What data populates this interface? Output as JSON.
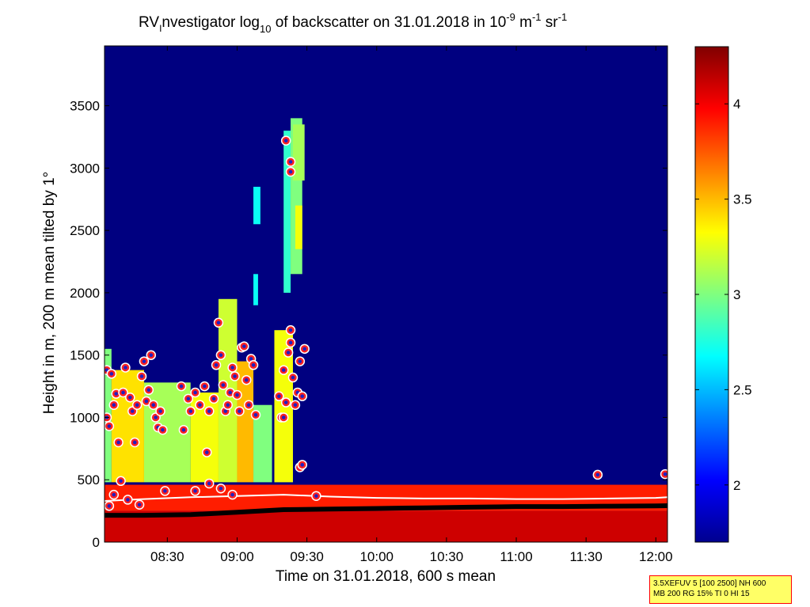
{
  "chart_data": {
    "type": "heatmap",
    "title": {
      "prefix": "RV",
      "sub_i": "I",
      "mid": "nvestigator log",
      "sub_10": "10",
      "mid2": " of backscatter on 31.01.2018 in 10",
      "sup_9": "-9",
      "unit_m": " m",
      "sup_1a": "-1",
      "unit_sr": " sr",
      "sup_1b": "-1"
    },
    "xlabel": "Time on 31.01.2018, 600 s mean",
    "ylabel": "Height in m, 200 m mean tilted by 1°",
    "x_ticks": [
      "08:30",
      "09:00",
      "09:30",
      "10:00",
      "10:30",
      "11:00",
      "11:30",
      "12:00"
    ],
    "x_tick_minutes": [
      510,
      540,
      570,
      600,
      630,
      660,
      690,
      720
    ],
    "xlim_minutes": [
      483,
      725
    ],
    "ylim": [
      0,
      3980
    ],
    "y_ticks": [
      0,
      500,
      1000,
      1500,
      2000,
      2500,
      3000,
      3500
    ],
    "colorbar": {
      "range": [
        1.7,
        4.3
      ],
      "ticks": [
        "2",
        "2.5",
        "3",
        "3.5",
        "4"
      ],
      "tick_values": [
        2,
        2.5,
        3,
        3.5,
        4
      ],
      "colormap": "jet"
    },
    "background_value": 1.7,
    "layers": [
      {
        "name": "surface layer",
        "from": 0,
        "to": 250,
        "value": 4.1
      },
      {
        "name": "boundary layer",
        "from": 250,
        "to": 460,
        "value": 3.9
      }
    ],
    "cloud_patches": [
      {
        "t0": 483,
        "t1": 486,
        "h0": 480,
        "h1": 1550,
        "value": 3.0
      },
      {
        "t0": 486,
        "t1": 500,
        "h0": 480,
        "h1": 1380,
        "value": 3.4
      },
      {
        "t0": 500,
        "t1": 520,
        "h0": 480,
        "h1": 1280,
        "value": 3.1
      },
      {
        "t0": 520,
        "t1": 532,
        "h0": 480,
        "h1": 1200,
        "value": 3.3
      },
      {
        "t0": 532,
        "t1": 540,
        "h0": 480,
        "h1": 1950,
        "value": 3.2
      },
      {
        "t0": 540,
        "t1": 547,
        "h0": 480,
        "h1": 1450,
        "value": 3.5
      },
      {
        "t0": 547,
        "t1": 555,
        "h0": 480,
        "h1": 1100,
        "value": 3.0
      },
      {
        "t0": 556,
        "t1": 564,
        "h0": 480,
        "h1": 1700,
        "value": 3.3
      },
      {
        "t0": 547,
        "t1": 549,
        "h0": 1900,
        "h1": 2150,
        "value": 2.7
      },
      {
        "t0": 547,
        "t1": 550,
        "h0": 2550,
        "h1": 2850,
        "value": 2.7
      },
      {
        "t0": 560,
        "t1": 563,
        "h0": 2000,
        "h1": 3300,
        "value": 2.8
      },
      {
        "t0": 563,
        "t1": 568,
        "h0": 2150,
        "h1": 3400,
        "value": 3.0
      },
      {
        "t0": 565,
        "t1": 568,
        "h0": 2350,
        "h1": 2700,
        "value": 3.3
      },
      {
        "t0": 564,
        "t1": 569,
        "h0": 2900,
        "h1": 3350,
        "value": 3.1
      }
    ],
    "markers_circles": [
      {
        "t": 484,
        "h": 1380
      },
      {
        "t": 486,
        "h": 1350
      },
      {
        "t": 484,
        "h": 1000
      },
      {
        "t": 485,
        "h": 930
      },
      {
        "t": 487,
        "h": 1100
      },
      {
        "t": 488,
        "h": 1190
      },
      {
        "t": 489,
        "h": 800
      },
      {
        "t": 491,
        "h": 1200
      },
      {
        "t": 492,
        "h": 1400
      },
      {
        "t": 494,
        "h": 1160
      },
      {
        "t": 495,
        "h": 1050
      },
      {
        "t": 496,
        "h": 800
      },
      {
        "t": 497,
        "h": 1100
      },
      {
        "t": 499,
        "h": 1330
      },
      {
        "t": 500,
        "h": 1450
      },
      {
        "t": 501,
        "h": 1130
      },
      {
        "t": 502,
        "h": 1220
      },
      {
        "t": 503,
        "h": 1500
      },
      {
        "t": 504,
        "h": 1100
      },
      {
        "t": 505,
        "h": 1000
      },
      {
        "t": 506,
        "h": 920
      },
      {
        "t": 507,
        "h": 1050
      },
      {
        "t": 508,
        "h": 900
      },
      {
        "t": 490,
        "h": 490
      },
      {
        "t": 485,
        "h": 290
      },
      {
        "t": 487,
        "h": 380
      },
      {
        "t": 493,
        "h": 340
      },
      {
        "t": 498,
        "h": 300
      },
      {
        "t": 509,
        "h": 410
      },
      {
        "t": 516,
        "h": 1250
      },
      {
        "t": 517,
        "h": 900
      },
      {
        "t": 519,
        "h": 1150
      },
      {
        "t": 520,
        "h": 1050
      },
      {
        "t": 522,
        "h": 1200
      },
      {
        "t": 524,
        "h": 1100
      },
      {
        "t": 526,
        "h": 1250
      },
      {
        "t": 527,
        "h": 720
      },
      {
        "t": 528,
        "h": 1050
      },
      {
        "t": 530,
        "h": 1150
      },
      {
        "t": 531,
        "h": 1420
      },
      {
        "t": 532,
        "h": 1760
      },
      {
        "t": 533,
        "h": 1500
      },
      {
        "t": 534,
        "h": 1260
      },
      {
        "t": 535,
        "h": 1050
      },
      {
        "t": 536,
        "h": 1100
      },
      {
        "t": 537,
        "h": 1200
      },
      {
        "t": 538,
        "h": 1400
      },
      {
        "t": 539,
        "h": 1330
      },
      {
        "t": 540,
        "h": 1180
      },
      {
        "t": 541,
        "h": 1050
      },
      {
        "t": 542,
        "h": 1560
      },
      {
        "t": 543,
        "h": 1570
      },
      {
        "t": 544,
        "h": 1300
      },
      {
        "t": 545,
        "h": 1100
      },
      {
        "t": 546,
        "h": 1470
      },
      {
        "t": 547,
        "h": 1420
      },
      {
        "t": 548,
        "h": 1020
      },
      {
        "t": 528,
        "h": 470
      },
      {
        "t": 533,
        "h": 430
      },
      {
        "t": 538,
        "h": 380
      },
      {
        "t": 522,
        "h": 410
      },
      {
        "t": 558,
        "h": 1170
      },
      {
        "t": 559,
        "h": 1000
      },
      {
        "t": 560,
        "h": 1380
      },
      {
        "t": 561,
        "h": 1120
      },
      {
        "t": 562,
        "h": 1520
      },
      {
        "t": 563,
        "h": 1700
      },
      {
        "t": 563,
        "h": 1600
      },
      {
        "t": 564,
        "h": 1320
      },
      {
        "t": 565,
        "h": 1100
      },
      {
        "t": 566,
        "h": 1200
      },
      {
        "t": 567,
        "h": 1450
      },
      {
        "t": 568,
        "h": 1170
      },
      {
        "t": 569,
        "h": 1550
      },
      {
        "t": 567,
        "h": 600
      },
      {
        "t": 561,
        "h": 3220
      },
      {
        "t": 563,
        "h": 3050
      },
      {
        "t": 563,
        "h": 2970
      },
      {
        "t": 560,
        "h": 1000
      },
      {
        "t": 568,
        "h": 620
      },
      {
        "t": 574,
        "h": 370
      },
      {
        "t": 695,
        "h": 540
      },
      {
        "t": 724,
        "h": 545
      }
    ],
    "line_boundary": {
      "t": [
        483,
        500,
        520,
        540,
        560,
        580,
        600,
        620,
        640,
        660,
        680,
        700,
        720,
        725
      ],
      "h": [
        330,
        345,
        360,
        370,
        380,
        365,
        355,
        350,
        350,
        345,
        345,
        350,
        355,
        360
      ]
    },
    "line_lowest": {
      "t": [
        483,
        500,
        520,
        540,
        560,
        580,
        600,
        620,
        640,
        660,
        680,
        700,
        720,
        725
      ],
      "h": [
        215,
        215,
        220,
        240,
        260,
        265,
        270,
        275,
        280,
        285,
        285,
        288,
        290,
        292
      ]
    }
  },
  "info_box": {
    "line1": "3.5XEFUV 5 [100 2500] NH 600",
    "line2": "MB 200 RG 15% TI 0 HI 15"
  }
}
